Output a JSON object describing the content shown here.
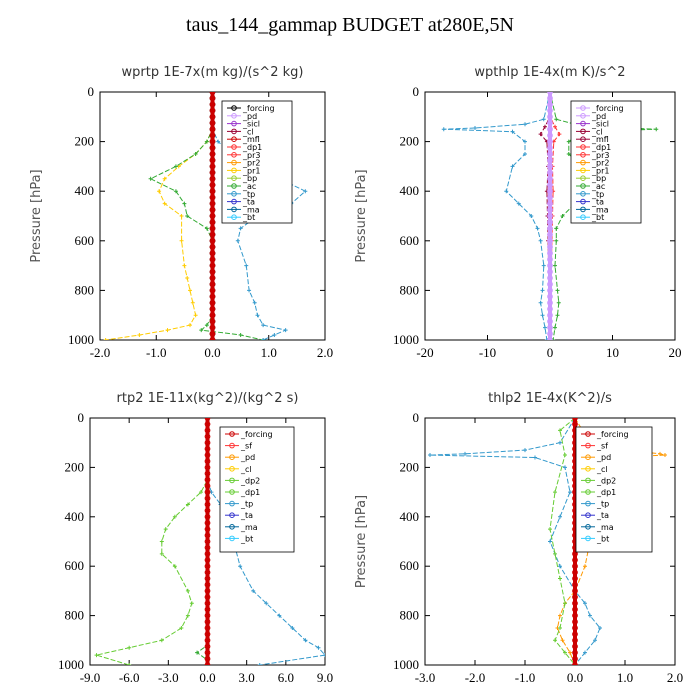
{
  "title": "taus_144_gammap  BUDGET at280E,5N",
  "chart_data": [
    {
      "type": "line",
      "title": "wprtp  1E-7x(m kg)/(s^2 kg)",
      "ylabel": "Pressure [hPa]",
      "xlim": [
        -2.0,
        2.0
      ],
      "ylim": [
        1000,
        0
      ],
      "xticks": [
        "-2.0",
        "-1.0",
        "0.0",
        "1.0",
        "2.0"
      ],
      "yticks": [
        "0",
        "200",
        "400",
        "600",
        "800",
        "1000"
      ],
      "legend": [
        "_forcing",
        "_pd",
        "_sicl",
        "_cl",
        "_mfl",
        "_dp1",
        "_pr3",
        "_pr2",
        "_pr1",
        "_bp",
        "_ac",
        "_tp",
        "_ta",
        "_ma",
        "_bt"
      ],
      "legend_colors": [
        "#000000",
        "#cc99ff",
        "#9933cc",
        "#990033",
        "#cc0000",
        "#ff3333",
        "#ff3333",
        "#ff9900",
        "#ffcc00",
        "#99cc33",
        "#33aa33",
        "#3399cc",
        "#3333cc",
        "#006699",
        "#33ccff"
      ],
      "series": [
        {
          "name": "_bp",
          "color": "#ffcc00",
          "x": [
            0,
            0,
            -0.1,
            -0.3,
            -0.6,
            -0.85,
            -0.95,
            -0.85,
            -0.55,
            -0.55,
            -0.5,
            -0.45,
            -0.4,
            -0.35,
            -0.3,
            -0.4,
            -0.8,
            -1.3,
            -1.9
          ],
          "y": [
            0,
            150,
            200,
            250,
            300,
            350,
            400,
            450,
            500,
            600,
            700,
            750,
            800,
            850,
            900,
            940,
            960,
            980,
            1000
          ]
        },
        {
          "name": "_ac",
          "color": "#33aa33",
          "x": [
            0,
            0,
            -0.1,
            -0.3,
            -0.65,
            -1.1,
            -0.65,
            -0.5,
            -0.45,
            -0.1,
            0,
            0,
            0,
            0,
            0,
            -0.1,
            -0.2,
            0.5,
            0.9
          ],
          "y": [
            0,
            150,
            200,
            250,
            300,
            350,
            400,
            450,
            500,
            550,
            600,
            700,
            800,
            850,
            900,
            940,
            960,
            980,
            1000
          ]
        },
        {
          "name": "_tp",
          "color": "#3399cc",
          "x": [
            0,
            0,
            0.1,
            0.35,
            0.7,
            1.2,
            1.65,
            1.4,
            0.8,
            0.5,
            0.45,
            0.6,
            0.65,
            0.75,
            0.8,
            0.9,
            1.3,
            1.1,
            0.9
          ],
          "y": [
            0,
            150,
            200,
            250,
            300,
            350,
            400,
            450,
            500,
            550,
            600,
            700,
            800,
            850,
            900,
            940,
            960,
            980,
            1000
          ]
        },
        {
          "name": "_forcing",
          "color": "#000000",
          "x": [
            0,
            0
          ],
          "y": [
            0,
            1000
          ]
        },
        {
          "name": "_mfl",
          "color": "#cc0000",
          "x": [
            0,
            0
          ],
          "y": [
            0,
            1000
          ]
        }
      ]
    },
    {
      "type": "line",
      "title": "wpthlp  1E-4x(m K)/s^2",
      "ylabel": "Pressure [hPa]",
      "xlim": [
        -20,
        20
      ],
      "ylim": [
        1000,
        0
      ],
      "xticks": [
        "-20",
        "-10",
        "0",
        "10",
        "20"
      ],
      "yticks": [
        "0",
        "200",
        "400",
        "600",
        "800",
        "1000"
      ],
      "legend": [
        "_forcing",
        "_pd",
        "_sicl",
        "_cl",
        "_mfl",
        "_dp1",
        "_pr3",
        "_pr2",
        "_pr1",
        "_bp",
        "_ac",
        "_tp",
        "_ta",
        "_ma",
        "_bt"
      ],
      "legend_colors": [
        "#cc99ff",
        "#cc99ff",
        "#9933cc",
        "#990033",
        "#990033",
        "#ff3333",
        "#ff3333",
        "#ff9900",
        "#ffcc00",
        "#99cc33",
        "#33aa33",
        "#3399cc",
        "#3333cc",
        "#006699",
        "#33ccff"
      ],
      "series": [
        {
          "name": "_tp",
          "color": "#3399cc",
          "x": [
            0,
            -1,
            -4,
            -12,
            -17,
            -6,
            -4,
            -4,
            -6,
            -7,
            -5,
            -3,
            -2,
            -1.5,
            -1,
            -1.2,
            -1.5,
            -1.2,
            -0.8,
            -0.5
          ],
          "y": [
            0,
            110,
            130,
            145,
            150,
            160,
            200,
            250,
            300,
            400,
            450,
            500,
            550,
            600,
            700,
            800,
            850,
            900,
            950,
            1000
          ]
        },
        {
          "name": "_ac",
          "color": "#33aa33",
          "x": [
            0,
            1,
            4,
            12,
            17,
            5,
            3,
            3,
            5,
            6,
            4,
            2,
            1,
            1,
            0.8,
            1.2,
            1.4,
            1.2,
            0.8,
            0.5
          ],
          "y": [
            0,
            110,
            130,
            145,
            150,
            160,
            200,
            250,
            300,
            400,
            450,
            500,
            550,
            600,
            700,
            800,
            850,
            900,
            950,
            1000
          ]
        },
        {
          "name": "_mfl",
          "color": "#990033",
          "x": [
            0,
            0,
            -0.8,
            -1.5,
            -0.5,
            -0.3,
            -0.5,
            -0.4,
            -0.3,
            0
          ],
          "y": [
            0,
            100,
            140,
            170,
            200,
            300,
            400,
            500,
            600,
            1000
          ]
        },
        {
          "name": "_dp1",
          "color": "#ff3333",
          "x": [
            0,
            0,
            0.8,
            1.5,
            0.6,
            0.4,
            0.5,
            0.4,
            0.3,
            0
          ],
          "y": [
            0,
            100,
            140,
            170,
            200,
            300,
            400,
            500,
            600,
            1000
          ]
        },
        {
          "name": "_pd",
          "color": "#cc99ff",
          "x": [
            0,
            0
          ],
          "y": [
            0,
            1000
          ]
        }
      ]
    },
    {
      "type": "line",
      "title": "rtp2  1E-11x(kg^2)/(kg^2 s)",
      "ylabel": "",
      "xlim": [
        -9.0,
        9.0
      ],
      "ylim": [
        1000,
        0
      ],
      "xticks": [
        "-9.0",
        "-6.0",
        "-3.0",
        "0.0",
        "3.0",
        "6.0",
        "9.0"
      ],
      "yticks": [
        "0",
        "200",
        "400",
        "600",
        "800",
        "1000"
      ],
      "legend": [
        "_forcing",
        "_sf",
        "_pd",
        "_cl",
        "_dp2",
        "_dp1",
        "_tp",
        "_ta",
        "_ma",
        "_bt"
      ],
      "legend_colors": [
        "#cc0000",
        "#ff3333",
        "#ff9900",
        "#ffcc00",
        "#66cc33",
        "#66cc33",
        "#3399cc",
        "#3333cc",
        "#006699",
        "#33ccff"
      ],
      "series": [
        {
          "name": "_dp1",
          "color": "#66cc33",
          "x": [
            0,
            0,
            -0.5,
            -1.5,
            -2.5,
            -3.2,
            -3.5,
            -3.5,
            -2.5,
            -1.5,
            -1.2,
            -1.5,
            -2,
            -3.5,
            -6,
            -8.5,
            -6
          ],
          "y": [
            0,
            250,
            300,
            350,
            400,
            450,
            500,
            550,
            600,
            700,
            750,
            800,
            850,
            900,
            930,
            960,
            1000
          ]
        },
        {
          "name": "_tp",
          "color": "#3399cc",
          "x": [
            0,
            0,
            0.3,
            1,
            1.5,
            1.8,
            2,
            2.5,
            3.5,
            4.5,
            5.5,
            6.5,
            7.5,
            8.5,
            9,
            4
          ],
          "y": [
            0,
            250,
            300,
            350,
            400,
            450,
            500,
            600,
            700,
            750,
            800,
            850,
            900,
            930,
            960,
            1000
          ]
        },
        {
          "name": "_dp2",
          "color": "#33aa33",
          "x": [
            0,
            0,
            -0.8,
            0,
            0
          ],
          "y": [
            0,
            920,
            950,
            980,
            1000
          ]
        },
        {
          "name": "_forcing",
          "color": "#cc0000",
          "x": [
            0,
            0
          ],
          "y": [
            0,
            1000
          ]
        }
      ]
    },
    {
      "type": "line",
      "title": "thlp2  1E-4x(K^2)/s",
      "ylabel": "Pressure [hPa]",
      "xlim": [
        -3.0,
        2.0
      ],
      "ylim": [
        1000,
        0
      ],
      "xticks": [
        "-3.0",
        "-2.0",
        "-1.0",
        "0.0",
        "1.0",
        "2.0"
      ],
      "yticks": [
        "0",
        "200",
        "400",
        "600",
        "800",
        "1000"
      ],
      "legend": [
        "_forcing",
        "_sf",
        "_pd",
        "_cl",
        "_dp2",
        "_dp1",
        "_tp",
        "_ta",
        "_ma",
        "_bt"
      ],
      "legend_colors": [
        "#cc0000",
        "#ff3333",
        "#ff9900",
        "#ffcc00",
        "#66cc33",
        "#66cc33",
        "#3399cc",
        "#3333cc",
        "#006699",
        "#33ccff"
      ],
      "series": [
        {
          "name": "_tp",
          "color": "#3399cc",
          "x": [
            0,
            -0.3,
            -1,
            -2.2,
            -2.9,
            -0.8,
            -0.2,
            -0.1,
            -0.3,
            -0.5,
            -0.3,
            0,
            0.2,
            0.3,
            0.5,
            0.4,
            0.2,
            0
          ],
          "y": [
            0,
            100,
            130,
            145,
            150,
            160,
            200,
            300,
            400,
            500,
            600,
            700,
            750,
            800,
            850,
            900,
            950,
            1000
          ]
        },
        {
          "name": "_pd",
          "color": "#ff9900",
          "x": [
            0,
            0.3,
            1,
            1.7,
            1.8,
            0.6,
            0.2,
            0.1,
            0.2,
            0.3,
            0.2,
            0,
            -0.2,
            -0.3,
            -0.35,
            -0.25,
            -0.1,
            0
          ],
          "y": [
            0,
            100,
            130,
            145,
            150,
            160,
            200,
            300,
            400,
            500,
            600,
            700,
            750,
            800,
            850,
            900,
            950,
            1000
          ]
        },
        {
          "name": "_dp1",
          "color": "#66cc33",
          "x": [
            0,
            -0.3,
            -0.2,
            -0.4,
            -0.5,
            -0.4,
            -0.3,
            -0.2,
            -0.3,
            -0.4,
            -0.2,
            0
          ],
          "y": [
            0,
            50,
            150,
            300,
            450,
            550,
            650,
            750,
            850,
            900,
            950,
            1000
          ]
        },
        {
          "name": "_forcing",
          "color": "#cc0000",
          "x": [
            0,
            0
          ],
          "y": [
            0,
            1000
          ]
        }
      ]
    }
  ]
}
